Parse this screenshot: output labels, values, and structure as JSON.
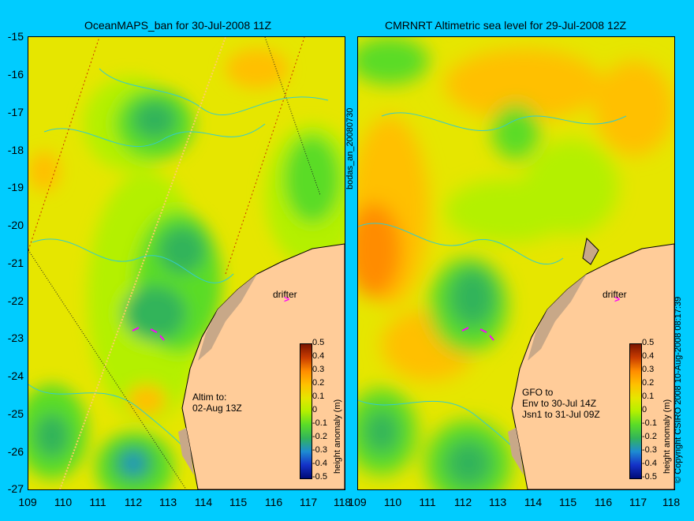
{
  "panels": [
    {
      "title": "OceanMAPS_ban for 30-Jul-2008 11Z",
      "annotation": [
        "Altim to:",
        "02-Aug 13Z"
      ]
    },
    {
      "title": "CMRNRT Altimetric sea level  for 29-Jul-2008 12Z",
      "annotation": [
        "GFO to",
        "Env to 30-Jul 14Z",
        "Jsn1 to 31-Jul 09Z"
      ]
    }
  ],
  "lat_ticks": [
    "-15",
    "-16",
    "-17",
    "-18",
    "-19",
    "-20",
    "-21",
    "-22",
    "-23",
    "-24",
    "-25",
    "-26",
    "-27"
  ],
  "lon_ticks": [
    "109",
    "110",
    "111",
    "112",
    "113",
    "114",
    "115",
    "116",
    "117",
    "118"
  ],
  "side_label": "bodas_an_20080730",
  "copyright": "© Copyright CSIRO 2008  10-Aug-2008 08:17:39",
  "drifter_label": "drifter",
  "colorbar": {
    "title": "height anomaly (m)",
    "ticks": [
      "0.5",
      "0.4",
      "0.3",
      "0.2",
      "0.1",
      "0",
      "-0.1",
      "-0.2",
      "-0.3",
      "-0.4",
      "-0.5"
    ],
    "colors": [
      "#7a1400",
      "#c83c00",
      "#ff8c00",
      "#ffc000",
      "#e6e600",
      "#b4f000",
      "#5adc28",
      "#32b45a",
      "#1e8cd2",
      "#1432c8",
      "#000a78"
    ]
  },
  "colors": {
    "land": "#ffcc99",
    "background": "#00ccff",
    "vector": "#ff00ff",
    "contour": "#33cccc"
  }
}
